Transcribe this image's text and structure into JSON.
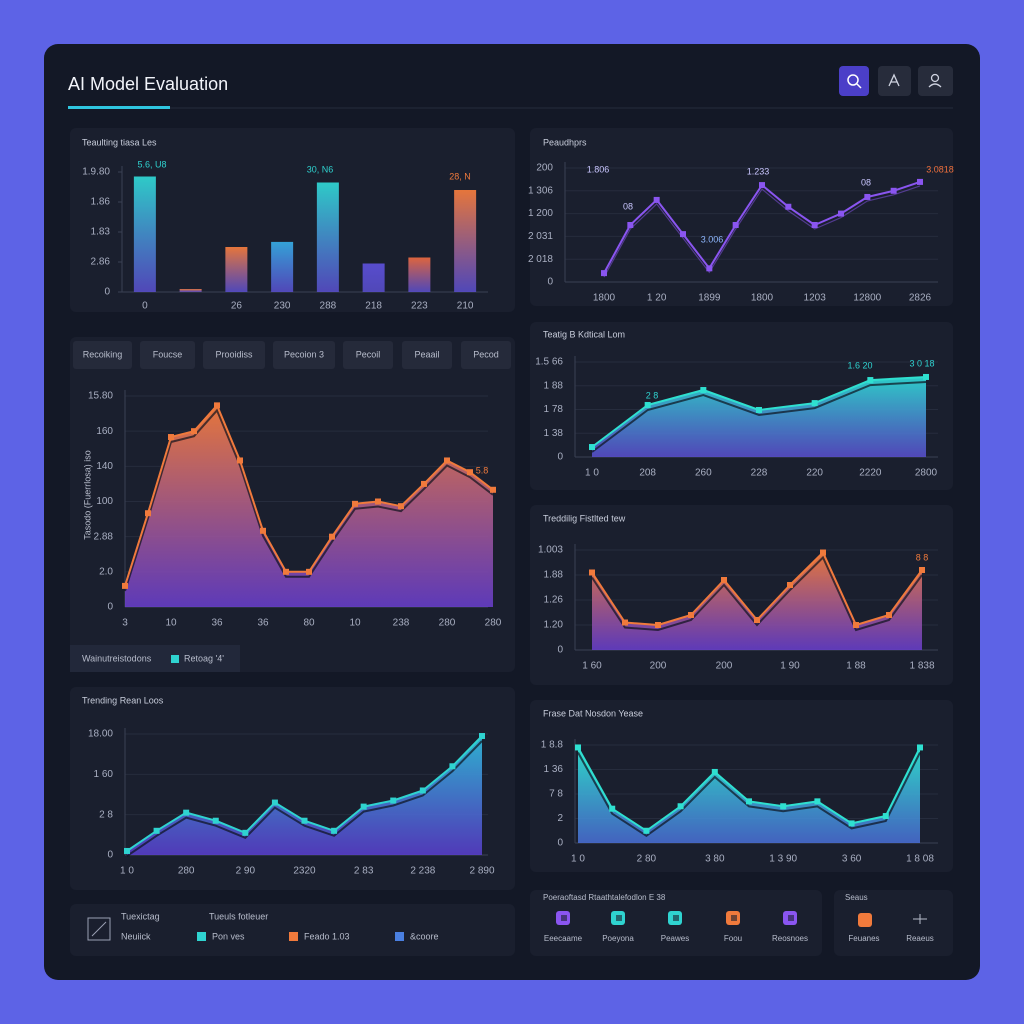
{
  "header": {
    "title": "AI Model Evaluation"
  },
  "tabs": [
    "Recoiking",
    "Foucse",
    "Prooidiss",
    "Pecoion 3",
    "Pecoil",
    "Peaail",
    "Pecod"
  ],
  "legend_row": {
    "label": "Wainutreistodons",
    "item": "Retoag '4'",
    "color": "#2fd3d0"
  },
  "chart_data": [
    {
      "type": "bar",
      "title": "Teaulting tiasa Les",
      "categories": [
        "0",
        null,
        "26",
        "230",
        "288",
        "218",
        "223",
        "210"
      ],
      "values": [
        3.85,
        0.1,
        1.5,
        1.67,
        3.65,
        0.95,
        1.15,
        3.4
      ],
      "colors": [
        "#2fd3d0",
        "#f07a3c",
        "#f07a3c",
        "#35a9e0",
        "#2fd3d0",
        "#5b4fd6",
        "#e8683e",
        "#f07a3c"
      ],
      "gradient_bottom": "#5a4fd0",
      "ylim": [
        0,
        4
      ],
      "yticks": [
        0,
        {
          "value": 1,
          "label": "2.86"
        },
        {
          "value": 2,
          "label": "1.83"
        },
        {
          "value": 3,
          "label": "1.86"
        },
        {
          "value": 4,
          "label": "1.9.80"
        }
      ],
      "grid": false,
      "annotations": [
        {
          "text": "5.6, U8",
          "color": "#2fd3d0"
        },
        {
          "text": "30, N6",
          "color": "#2fd3d0"
        },
        {
          "text": "28, N",
          "color": "#f07a3c"
        }
      ]
    },
    {
      "type": "line",
      "title": "Peaudhprs",
      "categories": [
        "1800",
        null,
        "1 20",
        null,
        "1899",
        null,
        "1800",
        null,
        "1203",
        null,
        "12800",
        null,
        "2826"
      ],
      "values": [
        0.39,
        2.5,
        3.6,
        2.1,
        0.6,
        2.5,
        4.25,
        3.3,
        2.5,
        3.0,
        3.73,
        4.0,
        4.39
      ],
      "color": "#8a55f0",
      "ylim": [
        0,
        5
      ],
      "yticks": [
        0,
        {
          "value": 1,
          "label": "2 018"
        },
        {
          "value": 2,
          "label": "2 031"
        },
        {
          "value": 3,
          "label": "1 200"
        },
        {
          "value": 4,
          "label": "1 306"
        },
        {
          "value": 5,
          "label": "200"
        }
      ],
      "grid": true,
      "annotations": [
        {
          "text": "1.806",
          "color": "#c9c6ff"
        },
        {
          "text": "08",
          "color": "#c9c6ff"
        },
        {
          "text": "1.233",
          "color": "#c9c6ff"
        },
        {
          "text": "3.006",
          "color": "#8fb8ff"
        },
        {
          "text": "08",
          "color": "#c9c6ff"
        },
        {
          "text": "3.0818",
          "color": "#f0703c"
        }
      ]
    },
    {
      "type": "area",
      "ylabel": "Tasodo (Fuerrlosa) iso",
      "categories": [
        "3",
        null,
        "10",
        null,
        "36",
        null,
        "36",
        null,
        "80",
        null,
        "10",
        null,
        "238",
        null,
        "280",
        null,
        "280"
      ],
      "values": [
        18,
        80,
        145,
        150,
        172,
        125,
        65,
        30,
        30,
        60,
        88,
        90,
        86,
        105,
        125,
        115,
        100
      ],
      "color": "#f07a3c",
      "gradient": [
        "#f07a3c",
        "#6a3fd0"
      ],
      "ylim": [
        0,
        180
      ],
      "yticks": [
        0,
        {
          "value": 30,
          "label": "2.0"
        },
        {
          "value": 60,
          "label": "2.88"
        },
        {
          "value": 90,
          "label": "100"
        },
        {
          "value": 120,
          "label": "140"
        },
        {
          "value": 150,
          "label": "160"
        },
        {
          "value": 180,
          "label": "15.80"
        }
      ],
      "grid": true,
      "annotations": [
        {
          "text": "5.8",
          "color": "#f07a3c"
        }
      ]
    },
    {
      "type": "area",
      "title": "Teatig B Kdtical Lom",
      "categories": [
        "1 0",
        "208",
        "260",
        "228",
        "220",
        "2220",
        "2800"
      ],
      "values": [
        0.42,
        2.19,
        2.82,
        1.98,
        2.27,
        3.24,
        3.37
      ],
      "color": "#2fe0d0",
      "gradient": [
        "#2fd3d0",
        "#5a4fd0"
      ],
      "ylim": [
        0,
        4
      ],
      "yticks": [
        0,
        {
          "value": 1,
          "label": "1 38"
        },
        {
          "value": 2,
          "label": "1 78"
        },
        {
          "value": 3,
          "label": "1 88"
        },
        {
          "value": 4,
          "label": "1.5 66"
        }
      ],
      "grid": true,
      "annotations": [
        {
          "text": "2 8",
          "color": "#2fd3d0"
        },
        {
          "text": "1.6 20",
          "color": "#2fd3d0"
        },
        {
          "text": "3 0 18",
          "color": "#2fd3d0"
        }
      ]
    },
    {
      "type": "area",
      "title": "Treddilig Fistlted tew",
      "categories": [
        "1 60",
        null,
        "200",
        null,
        "200",
        null,
        "1 90",
        null,
        "1 88",
        null,
        "1 838"
      ],
      "values": [
        3.1,
        1.1,
        1.0,
        1.4,
        2.8,
        1.2,
        2.6,
        3.9,
        1.0,
        1.4,
        3.2
      ],
      "color": "#f07a3c",
      "gradient": [
        "#f07a3c",
        "#6a3fd0"
      ],
      "ylim": [
        0,
        4
      ],
      "yticks": [
        0,
        {
          "value": 1,
          "label": "1.20"
        },
        {
          "value": 2,
          "label": "1.26"
        },
        {
          "value": 3,
          "label": "1.88"
        },
        {
          "value": 4,
          "label": "1.003"
        }
      ],
      "grid": true,
      "annotations": [
        {
          "text": "8 8",
          "color": "#f07a3c"
        }
      ]
    },
    {
      "type": "area",
      "title": "Trending Rean Loos",
      "categories": [
        "1 0",
        null,
        "280",
        null,
        "2 90",
        null,
        "2320",
        null,
        "2 83",
        null,
        "2 238",
        null,
        "2 890"
      ],
      "values": [
        0.1,
        0.6,
        1.05,
        0.85,
        0.55,
        1.3,
        0.85,
        0.6,
        1.2,
        1.35,
        1.6,
        2.2,
        2.95
      ],
      "color": "#2fd3d0",
      "gradient": [
        "#2fb8d8",
        "#5a3fd0"
      ],
      "ylim": [
        0,
        3
      ],
      "yticks": [
        0,
        {
          "value": 1,
          "label": "2 8"
        },
        {
          "value": 2,
          "label": "1 60"
        },
        {
          "value": 3,
          "label": "18.00"
        }
      ],
      "grid": true,
      "annotations": []
    },
    {
      "type": "area",
      "title": "Frase Dat Nosdon Yease",
      "categories": [
        "1 0",
        null,
        "2 80",
        null,
        "3 80",
        null,
        "1 3 90",
        null,
        "3 60",
        null,
        "1 8 08"
      ],
      "values": [
        3.9,
        1.4,
        0.5,
        1.5,
        2.9,
        1.7,
        1.5,
        1.7,
        0.8,
        1.1,
        3.9
      ],
      "color": "#2fe0d0",
      "gradient": [
        "#2fe0d0",
        "#4a6fd8"
      ],
      "ylim": [
        0,
        4
      ],
      "yticks": [
        0,
        {
          "value": 1,
          "label": "2"
        },
        {
          "value": 2,
          "label": "7 8"
        },
        {
          "value": 3,
          "label": "1 36"
        },
        {
          "value": 4,
          "label": "1 8.8"
        }
      ],
      "grid": true,
      "annotations": []
    }
  ],
  "bottom_left": {
    "title_a": "Tuexictag",
    "title_b": "Tueuls fotleuer",
    "sub": "Neuiick",
    "items": [
      {
        "label": "Pon ves",
        "color": "#2fd3d0"
      },
      {
        "label": "Feado 1.03",
        "color": "#f07a3c"
      },
      {
        "label": "&coore",
        "color": "#4a7fe0"
      }
    ]
  },
  "bottom_right": {
    "title": "Poeraoftasd Rtaathtalefodlon E 38",
    "items": [
      {
        "label": "Eeecaame",
        "color": "#8a55f0"
      },
      {
        "label": "Poeyona",
        "color": "#2fd3d0"
      },
      {
        "label": "Peawes",
        "color": "#2fd3d0"
      },
      {
        "label": "Foou",
        "color": "#f07a3c"
      },
      {
        "label": "Reosnoes",
        "color": "#8a55f0"
      }
    ]
  },
  "status": {
    "title": "Seaus",
    "items": [
      "Feuanes",
      "Reaeus"
    ]
  }
}
